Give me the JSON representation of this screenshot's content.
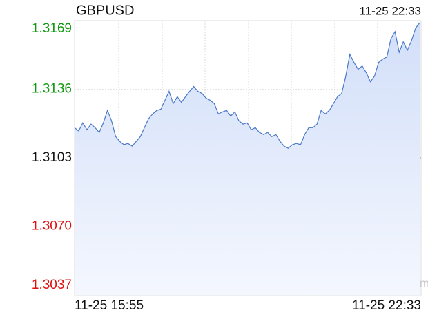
{
  "chart_data": {
    "type": "area",
    "title": "GBPUSD",
    "updated": "11-25 22:33",
    "watermark": "sina.com",
    "categories": [
      "11-25 15:55",
      null,
      null,
      null,
      null,
      null,
      null,
      null,
      null,
      null,
      null,
      null,
      null,
      null,
      null,
      null,
      null,
      null,
      null,
      null,
      null,
      null,
      null,
      null,
      null,
      null,
      null,
      null,
      null,
      null,
      null,
      null,
      null,
      null,
      null,
      null,
      null,
      null,
      null,
      null,
      null,
      null,
      null,
      null,
      null,
      null,
      null,
      null,
      null,
      null,
      null,
      null,
      null,
      null,
      null,
      null,
      null,
      null,
      null,
      null,
      null,
      null,
      null,
      null,
      null,
      null,
      null,
      null,
      null,
      null,
      null,
      null,
      null,
      null,
      null,
      null,
      null,
      null,
      null,
      null,
      null,
      null,
      null,
      null,
      "11-25 22:33"
    ],
    "values": [
      1.31175,
      1.31159,
      1.31198,
      1.31165,
      1.31192,
      1.31175,
      1.31152,
      1.31198,
      1.31258,
      1.31208,
      1.31132,
      1.31109,
      1.31093,
      1.31099,
      1.31086,
      1.31109,
      1.31132,
      1.31175,
      1.31218,
      1.31241,
      1.31258,
      1.31264,
      1.31307,
      1.3135,
      1.31291,
      1.31324,
      1.31297,
      1.31324,
      1.3135,
      1.31373,
      1.3135,
      1.3134,
      1.31317,
      1.31307,
      1.31291,
      1.31241,
      1.31251,
      1.31258,
      1.31231,
      1.31251,
      1.31208,
      1.31192,
      1.31198,
      1.31165,
      1.31175,
      1.31152,
      1.31142,
      1.31152,
      1.31132,
      1.31142,
      1.31109,
      1.31086,
      1.31076,
      1.31093,
      1.31099,
      1.31093,
      1.31142,
      1.31175,
      1.31175,
      1.31192,
      1.31258,
      1.31241,
      1.31258,
      1.31291,
      1.31324,
      1.3134,
      1.31423,
      1.31528,
      1.31489,
      1.31456,
      1.31472,
      1.31439,
      1.31396,
      1.31423,
      1.31489,
      1.31505,
      1.31515,
      1.31604,
      1.31637,
      1.31538,
      1.31588,
      1.31548,
      1.31594,
      1.31654,
      1.3168
    ],
    "color": "#4a78c8",
    "fill": "#d6e2fa",
    "up_color": "#119911",
    "down_color": "#dd1111",
    "flat_color": "#111111",
    "baseline": 1.3103,
    "ylim": [
      1.3037,
      1.3169
    ],
    "yticks": [
      1.3169,
      1.3136,
      1.3103,
      {
        "value": 1.307,
        "label": "1.3070"
      },
      1.3037
    ],
    "grid": true
  }
}
